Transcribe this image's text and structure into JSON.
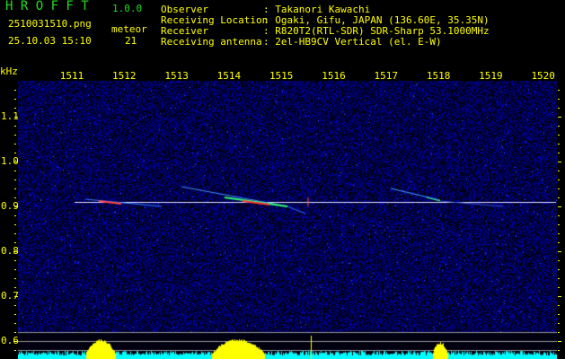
{
  "app": {
    "logo": "H R O F F T",
    "version": "1.0.0"
  },
  "file": {
    "name": "2510031510.png",
    "datetime": "25.10.03 15:10"
  },
  "meteor": {
    "label": "meteor",
    "count": "21"
  },
  "info": [
    {
      "label": "Observer",
      "value": ": Takanori Kawachi"
    },
    {
      "label": "Receiving Location",
      "value": ": Ogaki, Gifu, JAPAN (136.60E, 35.35N)"
    },
    {
      "label": "Receiver",
      "value": ": R820T2(RTL-SDR) SDR-Sharp 53.1000MHz"
    },
    {
      "label": "Receiving antenna",
      "value": ": 2el-HB9CV Vertical (el. E-W)"
    }
  ],
  "axes": {
    "unit": "kHz",
    "freq_ticks": [
      "1511",
      "1512",
      "1513",
      "1514",
      "1515",
      "1516",
      "1517",
      "1518",
      "1519",
      "1520"
    ],
    "khz_ticks": [
      "1.1",
      "1.0",
      "0.9",
      "0.8",
      "0.7",
      "0.6"
    ]
  },
  "colors": {
    "text": "#ffff00",
    "logo": "#22dd22",
    "spectrum": "#00ffff",
    "peak": "#ffff00",
    "background": "#000000",
    "noise": "#0a0a60"
  }
}
